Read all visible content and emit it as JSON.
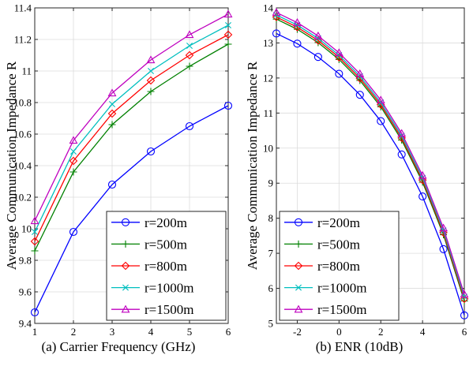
{
  "chart_data": [
    {
      "type": "line",
      "caption": "(a)  Carrier Frequency (GHz)",
      "ylabel": "Average Communication Impedance R",
      "xlim": [
        1,
        6
      ],
      "ylim": [
        9.4,
        11.4
      ],
      "xticks": [
        1,
        2,
        3,
        4,
        5,
        6
      ],
      "xtick_labels": [
        "1",
        "2",
        "3",
        "4",
        "5",
        "6"
      ],
      "yticks": [
        9.4,
        9.6,
        9.8,
        10,
        10.2,
        10.4,
        10.6,
        10.8,
        11,
        11.2,
        11.4
      ],
      "ytick_labels": [
        "9.4",
        "9.6",
        "9.8",
        "10",
        "10.2",
        "10.4",
        "10.6",
        "10.8",
        "11",
        "11.2",
        "11.4"
      ],
      "grid": true,
      "legend_position": "bottom-right",
      "x": [
        1,
        2,
        3,
        4,
        5,
        6
      ],
      "series": [
        {
          "name": "r=200m",
          "color": "#0000ff",
          "marker": "circle",
          "values": [
            9.47,
            9.98,
            10.28,
            10.49,
            10.65,
            10.78
          ]
        },
        {
          "name": "r=500m",
          "color": "#008000",
          "marker": "plus",
          "values": [
            9.86,
            10.36,
            10.66,
            10.87,
            11.03,
            11.17
          ]
        },
        {
          "name": "r=800m",
          "color": "#ff0000",
          "marker": "diamond",
          "values": [
            9.92,
            10.43,
            10.73,
            10.94,
            11.1,
            11.23
          ]
        },
        {
          "name": "r=1000m",
          "color": "#00bfbf",
          "marker": "x",
          "values": [
            9.98,
            10.49,
            10.79,
            11.0,
            11.16,
            11.29
          ]
        },
        {
          "name": "r=1500m",
          "color": "#bf00bf",
          "marker": "triangle",
          "values": [
            10.05,
            10.56,
            10.86,
            11.07,
            11.23,
            11.36
          ]
        }
      ]
    },
    {
      "type": "line",
      "caption": "(b)  ENR (10dB)",
      "ylabel": "Average Communication Impedance R",
      "xlim": [
        -3,
        6
      ],
      "ylim": [
        5,
        14
      ],
      "xticks": [
        -2,
        0,
        2,
        4,
        6
      ],
      "xtick_labels": [
        "-2",
        "0",
        "2",
        "4",
        "6"
      ],
      "yticks": [
        5,
        6,
        7,
        8,
        9,
        10,
        11,
        12,
        13,
        14
      ],
      "ytick_labels": [
        "5",
        "6",
        "7",
        "8",
        "9",
        "10",
        "11",
        "12",
        "13",
        "14"
      ],
      "grid": true,
      "legend_position": "bottom-left",
      "x": [
        -3,
        -2,
        -1,
        0,
        1,
        2,
        3,
        4,
        5,
        6
      ],
      "series": [
        {
          "name": "r=200m",
          "color": "#0000ff",
          "marker": "circle",
          "values": [
            13.27,
            12.98,
            12.6,
            12.12,
            11.52,
            10.77,
            9.82,
            8.62,
            7.12,
            5.23
          ]
        },
        {
          "name": "r=500m",
          "color": "#008000",
          "marker": "plus",
          "values": [
            13.68,
            13.39,
            13.01,
            12.53,
            11.93,
            11.18,
            10.23,
            9.03,
            7.53,
            5.64
          ]
        },
        {
          "name": "r=800m",
          "color": "#ff0000",
          "marker": "diamond",
          "values": [
            13.74,
            13.45,
            13.07,
            12.59,
            11.99,
            11.24,
            10.29,
            9.09,
            7.59,
            5.7
          ]
        },
        {
          "name": "r=1000m",
          "color": "#00bfbf",
          "marker": "x",
          "values": [
            13.8,
            13.51,
            13.13,
            12.65,
            12.05,
            11.3,
            10.35,
            9.15,
            7.65,
            5.76
          ]
        },
        {
          "name": "r=1500m",
          "color": "#bf00bf",
          "marker": "triangle",
          "values": [
            13.87,
            13.58,
            13.2,
            12.72,
            12.12,
            11.37,
            10.42,
            9.22,
            7.72,
            5.83
          ]
        }
      ]
    }
  ]
}
